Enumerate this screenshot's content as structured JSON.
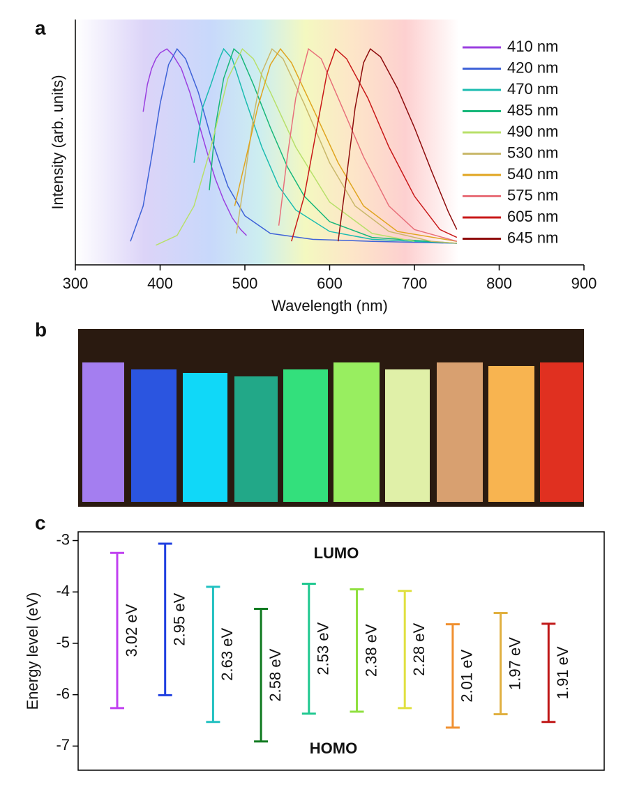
{
  "chart_data": [
    {
      "type": "line",
      "panel_label": "a",
      "xlabel": "Wavelength (nm)",
      "ylabel": "Intensity (arb. units)",
      "xlim": [
        300,
        900
      ],
      "xticks": [
        300,
        400,
        500,
        600,
        700,
        800,
        900
      ],
      "ylim": [
        -0.1,
        1.15
      ],
      "series": [
        {
          "name": "410 nm",
          "color": "#9b3fe0",
          "x": [
            380,
            385,
            390,
            395,
            400,
            408,
            415,
            425,
            435,
            445,
            455,
            465,
            475,
            485,
            495,
            502
          ],
          "values": [
            0.68,
            0.82,
            0.9,
            0.95,
            0.98,
            1,
            0.97,
            0.9,
            0.78,
            0.63,
            0.48,
            0.34,
            0.23,
            0.14,
            0.08,
            0.05
          ]
        },
        {
          "name": "420 nm",
          "color": "#3f63d8",
          "x": [
            365,
            380,
            390,
            400,
            410,
            420,
            430,
            445,
            460,
            480,
            500,
            530,
            580,
            650,
            750
          ],
          "values": [
            0.02,
            0.2,
            0.45,
            0.72,
            0.92,
            1,
            0.95,
            0.78,
            0.55,
            0.3,
            0.15,
            0.06,
            0.03,
            0.02,
            0.01
          ]
        },
        {
          "name": "470 nm",
          "color": "#1bbcb0",
          "x": [
            440,
            450,
            460,
            470,
            475,
            485,
            500,
            520,
            540,
            560,
            600,
            650,
            750
          ],
          "values": [
            0.42,
            0.7,
            0.82,
            0.95,
            1,
            0.95,
            0.75,
            0.5,
            0.3,
            0.18,
            0.07,
            0.03,
            0.01
          ]
        },
        {
          "name": "485 nm",
          "color": "#17b77a",
          "x": [
            458,
            465,
            475,
            487,
            495,
            510,
            530,
            550,
            570,
            600,
            650,
            750
          ],
          "values": [
            0.28,
            0.6,
            0.85,
            1,
            0.97,
            0.82,
            0.6,
            0.4,
            0.25,
            0.12,
            0.04,
            0.01
          ]
        },
        {
          "name": "490 nm",
          "color": "#b8e06a",
          "x": [
            395,
            420,
            440,
            460,
            480,
            497,
            510,
            530,
            560,
            600,
            650,
            700
          ],
          "values": [
            0,
            0.05,
            0.2,
            0.5,
            0.85,
            1,
            0.95,
            0.78,
            0.5,
            0.22,
            0.06,
            0.02
          ]
        },
        {
          "name": "530 nm",
          "color": "#c9b86a",
          "x": [
            490,
            500,
            510,
            520,
            532,
            545,
            570,
            600,
            630,
            670,
            720,
            750
          ],
          "values": [
            0.06,
            0.35,
            0.65,
            0.88,
            1,
            0.95,
            0.72,
            0.42,
            0.2,
            0.07,
            0.02,
            0.01
          ]
        },
        {
          "name": "540 nm",
          "color": "#e0a520",
          "x": [
            488,
            500,
            515,
            530,
            542,
            555,
            580,
            610,
            640,
            680,
            750
          ],
          "values": [
            0.2,
            0.42,
            0.7,
            0.92,
            1,
            0.93,
            0.7,
            0.42,
            0.2,
            0.07,
            0.02
          ]
        },
        {
          "name": "575 nm",
          "color": "#e8707a",
          "x": [
            540,
            550,
            560,
            575,
            590,
            610,
            640,
            670,
            700,
            750
          ],
          "values": [
            0.1,
            0.45,
            0.75,
            1,
            0.95,
            0.75,
            0.45,
            0.2,
            0.08,
            0.02
          ]
        },
        {
          "name": "605 nm",
          "color": "#c81818",
          "x": [
            555,
            570,
            585,
            597,
            607,
            620,
            645,
            670,
            700,
            730,
            750
          ],
          "values": [
            0.02,
            0.25,
            0.6,
            0.88,
            1,
            0.95,
            0.75,
            0.5,
            0.25,
            0.08,
            0.04
          ]
        },
        {
          "name": "645 nm",
          "color": "#8e0c0c",
          "x": [
            610,
            620,
            630,
            640,
            648,
            660,
            680,
            700,
            720,
            740,
            750
          ],
          "values": [
            0.02,
            0.35,
            0.7,
            0.93,
            1,
            0.96,
            0.8,
            0.6,
            0.38,
            0.17,
            0.08
          ]
        }
      ]
    },
    {
      "type": "range",
      "panel_label": "c",
      "ylabel": "Energy level (eV)",
      "annotations": [
        "LUMO",
        "HOMO"
      ],
      "ylim": [
        -7.47,
        -2.83
      ],
      "yticks": [
        -3,
        -4,
        -5,
        -6,
        -7
      ],
      "high": [
        -3.24,
        -3.06,
        -3.9,
        -4.33,
        -3.84,
        -3.95,
        -3.98,
        -4.63,
        -4.41,
        -4.62
      ],
      "low": [
        -6.26,
        -6.01,
        -6.53,
        -6.91,
        -6.37,
        -6.33,
        -6.26,
        -6.64,
        -6.38,
        -6.53
      ],
      "labels": [
        "3.02 eV",
        "2.95 eV",
        "2.63 eV",
        "2.58 eV",
        "2.53 eV",
        "2.38 eV",
        "2.28 eV",
        "2.01 eV",
        "1.97 eV",
        "1.91 eV"
      ],
      "colors": [
        "#c040f0",
        "#1f3fe0",
        "#20c0c0",
        "#107a20",
        "#20c890",
        "#90e040",
        "#e0e040",
        "#f09030",
        "#e0b040",
        "#c01818"
      ]
    }
  ],
  "photo": {
    "panel_label": "b"
  }
}
